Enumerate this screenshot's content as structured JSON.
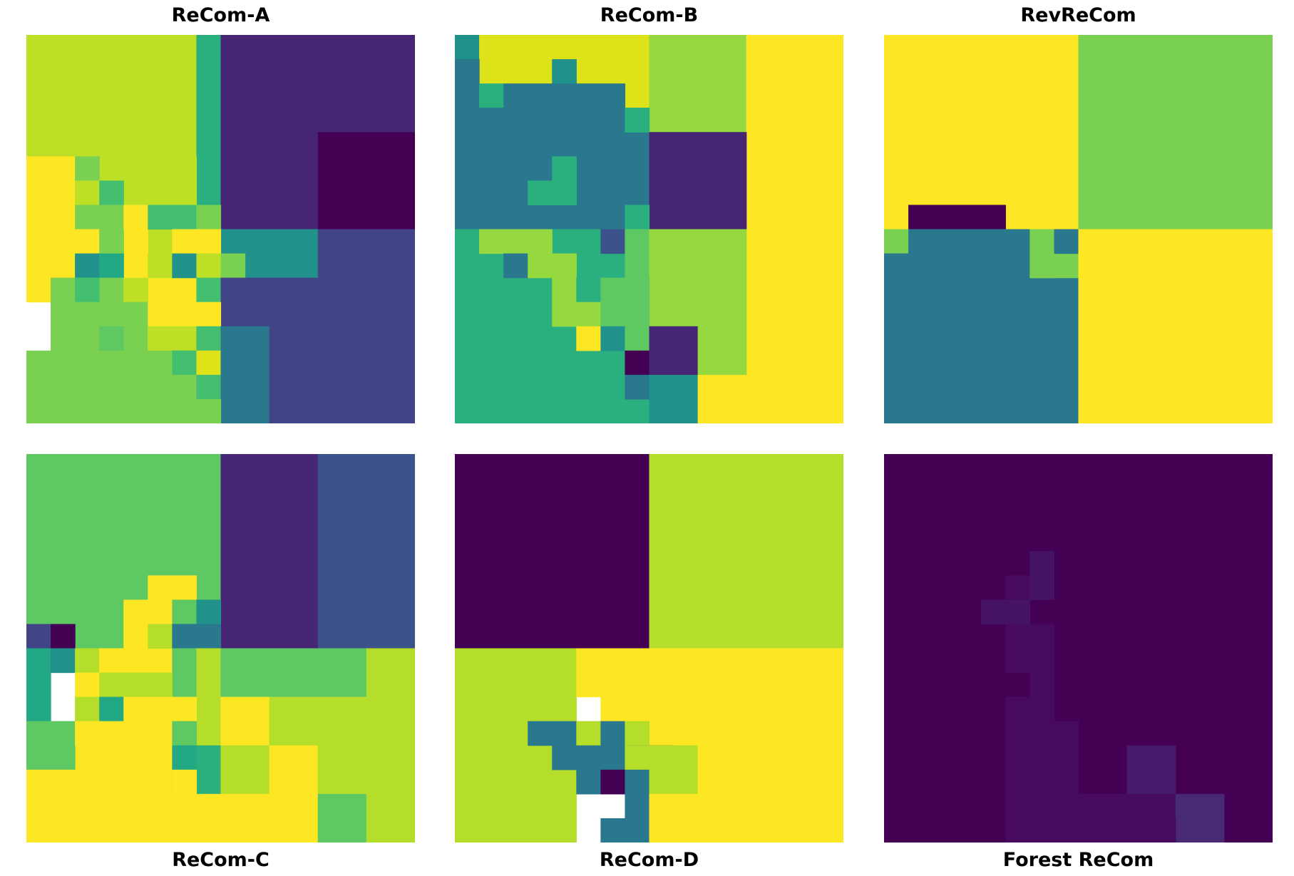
{
  "colors": {
    "c0": "#440154",
    "c1": "#472575",
    "c2": "#414487",
    "c3": "#3b528b",
    "c4": "#2a788e",
    "c5": "#21918c",
    "c6": "#22a884",
    "c7": "#2ab07f",
    "c8": "#44bf70",
    "c9": "#5ec962",
    "c10": "#7ad151",
    "c11": "#95d840",
    "c12": "#b5de2b",
    "c13": "#bddf26",
    "c14": "#dde318",
    "c15": "#fde725",
    "f1": "#45065a",
    "f2": "#460b5e",
    "f3": "#461264",
    "f4": "#471a6c",
    "f5": "#482a74"
  },
  "chart_data": [
    {
      "type": "heatmap",
      "title": "ReCom-A",
      "grid": [
        16,
        16
      ],
      "colormap": "viridis",
      "axes": "off",
      "cells": [
        [
          0,
          0,
          7,
          5,
          "c13"
        ],
        [
          7,
          0,
          1,
          8,
          "c7"
        ],
        [
          8,
          0,
          8,
          4,
          "c1"
        ],
        [
          0,
          5,
          7,
          5,
          "c13"
        ],
        [
          0,
          5,
          2,
          6,
          "c15"
        ],
        [
          2,
          5,
          1,
          1,
          "c10"
        ],
        [
          8,
          4,
          4,
          4,
          "c1"
        ],
        [
          12,
          4,
          4,
          4,
          "c0"
        ],
        [
          2,
          6,
          1,
          1,
          "c13"
        ],
        [
          3,
          6,
          1,
          1,
          "c8"
        ],
        [
          2,
          7,
          2,
          1,
          "c10"
        ],
        [
          4,
          7,
          1,
          2,
          "c15"
        ],
        [
          5,
          7,
          2,
          1,
          "c8"
        ],
        [
          7,
          7,
          1,
          1,
          "c10"
        ],
        [
          8,
          8,
          4,
          2,
          "c5"
        ],
        [
          12,
          8,
          4,
          4,
          "c2"
        ],
        [
          2,
          8,
          1,
          1,
          "c15"
        ],
        [
          3,
          8,
          1,
          1,
          "c10"
        ],
        [
          6,
          8,
          2,
          1,
          "c15"
        ],
        [
          1,
          9,
          6,
          4,
          "c15"
        ],
        [
          2,
          9,
          1,
          1,
          "c5"
        ],
        [
          3,
          9,
          1,
          1,
          "c6"
        ],
        [
          5,
          9,
          1,
          1,
          "c13"
        ],
        [
          6,
          9,
          1,
          1,
          "c5"
        ],
        [
          7,
          9,
          1,
          1,
          "c13"
        ],
        [
          8,
          9,
          1,
          1,
          "c10"
        ],
        [
          1,
          10,
          3,
          2,
          "c10"
        ],
        [
          2,
          10,
          1,
          2,
          "c8"
        ],
        [
          4,
          10,
          1,
          1,
          "c13"
        ],
        [
          7,
          10,
          1,
          2,
          "c8"
        ],
        [
          8,
          10,
          4,
          2,
          "c2"
        ],
        [
          1,
          11,
          4,
          3,
          "c10"
        ],
        [
          5,
          11,
          3,
          2,
          "c15"
        ],
        [
          1,
          12,
          3,
          1,
          "c10"
        ],
        [
          3,
          12,
          1,
          1,
          "c9"
        ],
        [
          5,
          12,
          2,
          1,
          "c13"
        ],
        [
          7,
          12,
          1,
          1,
          "c8"
        ],
        [
          0,
          13,
          8,
          3,
          "c10"
        ],
        [
          6,
          13,
          2,
          1,
          "c8"
        ],
        [
          7,
          13,
          1,
          1,
          "c14"
        ],
        [
          8,
          12,
          8,
          4,
          "c2"
        ],
        [
          0,
          14,
          8,
          2,
          "c10"
        ],
        [
          7,
          14,
          1,
          1,
          "c8"
        ],
        [
          8,
          12,
          2,
          4,
          "c4"
        ],
        [
          10,
          12,
          6,
          4,
          "c2"
        ],
        [
          0,
          15,
          8,
          1,
          "c10"
        ],
        [
          8,
          16,
          0,
          0,
          "c0"
        ]
      ]
    },
    {
      "type": "heatmap",
      "title": "ReCom-B",
      "grid": [
        16,
        16
      ],
      "colormap": "viridis",
      "axes": "off",
      "cells": [
        [
          0,
          0,
          1,
          1,
          "c5"
        ],
        [
          1,
          0,
          7,
          4,
          "c14"
        ],
        [
          8,
          0,
          4,
          4,
          "c11"
        ],
        [
          12,
          0,
          4,
          16,
          "c15"
        ],
        [
          0,
          1,
          1,
          3,
          "c4"
        ],
        [
          4,
          1,
          1,
          1,
          "c5"
        ],
        [
          1,
          2,
          1,
          1,
          "c7"
        ],
        [
          2,
          2,
          5,
          1,
          "c4"
        ],
        [
          0,
          3,
          8,
          5,
          "c4"
        ],
        [
          7,
          3,
          1,
          1,
          "c7"
        ],
        [
          8,
          4,
          4,
          4,
          "c1"
        ],
        [
          4,
          5,
          1,
          1,
          "c7"
        ],
        [
          3,
          6,
          2,
          1,
          "c7"
        ],
        [
          7,
          7,
          1,
          1,
          "c7"
        ],
        [
          0,
          8,
          8,
          8,
          "c7"
        ],
        [
          1,
          8,
          3,
          1,
          "c11"
        ],
        [
          6,
          8,
          1,
          1,
          "c3"
        ],
        [
          7,
          8,
          1,
          2,
          "c9"
        ],
        [
          8,
          8,
          4,
          4,
          "c11"
        ],
        [
          2,
          9,
          1,
          1,
          "c4"
        ],
        [
          3,
          9,
          1,
          1,
          "c11"
        ],
        [
          4,
          9,
          1,
          1,
          "c11"
        ],
        [
          4,
          10,
          1,
          1,
          "c11"
        ],
        [
          5,
          10,
          1,
          1,
          "c7"
        ],
        [
          6,
          10,
          2,
          1,
          "c9"
        ],
        [
          4,
          11,
          3,
          1,
          "c11"
        ],
        [
          6,
          11,
          2,
          1,
          "c9"
        ],
        [
          5,
          12,
          1,
          1,
          "c15"
        ],
        [
          6,
          12,
          1,
          1,
          "c5"
        ],
        [
          7,
          12,
          1,
          1,
          "c9"
        ],
        [
          7,
          13,
          1,
          1,
          "c0"
        ],
        [
          7,
          14,
          1,
          1,
          "c4"
        ],
        [
          8,
          12,
          2,
          2,
          "c1"
        ],
        [
          10,
          12,
          2,
          2,
          "c11"
        ],
        [
          8,
          14,
          2,
          2,
          "c5"
        ],
        [
          10,
          14,
          2,
          2,
          "c15"
        ]
      ]
    },
    {
      "type": "heatmap",
      "title": "RevReCom",
      "grid": [
        16,
        16
      ],
      "colormap": "viridis",
      "axes": "off",
      "cells": [
        [
          0,
          0,
          8,
          8,
          "c15"
        ],
        [
          8,
          0,
          8,
          8,
          "c10"
        ],
        [
          1,
          7,
          4,
          1,
          "c0"
        ],
        [
          0,
          8,
          1,
          1,
          "c10"
        ],
        [
          1,
          8,
          5,
          8,
          "c4"
        ],
        [
          0,
          9,
          8,
          7,
          "c4"
        ],
        [
          6,
          8,
          2,
          2,
          "c10"
        ],
        [
          7,
          8,
          1,
          1,
          "c4"
        ],
        [
          6,
          9,
          1,
          1,
          "c10"
        ],
        [
          8,
          8,
          8,
          8,
          "c15"
        ]
      ]
    },
    {
      "type": "heatmap",
      "title": "ReCom-C",
      "grid": [
        16,
        16
      ],
      "colormap": "viridis",
      "axes": "off",
      "cells": [
        [
          0,
          0,
          8,
          8,
          "c9"
        ],
        [
          8,
          0,
          4,
          8,
          "c1"
        ],
        [
          12,
          0,
          4,
          8,
          "c3"
        ],
        [
          5,
          5,
          2,
          4,
          "c15"
        ],
        [
          4,
          6,
          1,
          3,
          "c15"
        ],
        [
          6,
          6,
          1,
          1,
          "c9"
        ],
        [
          7,
          6,
          1,
          1,
          "c5"
        ],
        [
          0,
          7,
          1,
          1,
          "c2"
        ],
        [
          1,
          7,
          1,
          1,
          "c0"
        ],
        [
          5,
          7,
          1,
          1,
          "c12"
        ],
        [
          6,
          7,
          2,
          1,
          "c4"
        ],
        [
          0,
          8,
          1,
          3,
          "c6"
        ],
        [
          1,
          8,
          1,
          1,
          "c5"
        ],
        [
          2,
          8,
          1,
          1,
          "c12"
        ],
        [
          3,
          8,
          1,
          1,
          "c15"
        ],
        [
          6,
          8,
          1,
          2,
          "c9"
        ],
        [
          7,
          8,
          1,
          4,
          "c12"
        ],
        [
          8,
          8,
          6,
          2,
          "c9"
        ],
        [
          14,
          8,
          2,
          2,
          "c12"
        ],
        [
          2,
          9,
          1,
          1,
          "c15"
        ],
        [
          3,
          9,
          2,
          1,
          "c12"
        ],
        [
          5,
          9,
          1,
          1,
          "c12"
        ],
        [
          2,
          10,
          1,
          1,
          "c12"
        ],
        [
          3,
          10,
          1,
          1,
          "c6"
        ],
        [
          4,
          10,
          3,
          6,
          "c15"
        ],
        [
          0,
          11,
          2,
          2,
          "c9"
        ],
        [
          2,
          11,
          2,
          5,
          "c15"
        ],
        [
          6,
          11,
          1,
          1,
          "c9"
        ],
        [
          8,
          10,
          2,
          2,
          "c15"
        ],
        [
          10,
          10,
          6,
          2,
          "c12"
        ],
        [
          0,
          12,
          2,
          1,
          "c9"
        ],
        [
          6,
          12,
          1,
          1,
          "c6"
        ],
        [
          7,
          12,
          1,
          1,
          "c7"
        ],
        [
          0,
          13,
          2,
          3,
          "c15"
        ],
        [
          6,
          13,
          2,
          1,
          "c7"
        ],
        [
          7,
          13,
          1,
          1,
          "c7"
        ],
        [
          6,
          13,
          1,
          1,
          "c15"
        ],
        [
          8,
          12,
          2,
          2,
          "c12"
        ],
        [
          10,
          12,
          2,
          2,
          "c15"
        ],
        [
          12,
          12,
          4,
          2,
          "c12"
        ],
        [
          7,
          14,
          1,
          2,
          "c15"
        ],
        [
          8,
          14,
          4,
          2,
          "c15"
        ],
        [
          12,
          14,
          2,
          2,
          "c9"
        ],
        [
          14,
          14,
          2,
          2,
          "c12"
        ]
      ]
    },
    {
      "type": "heatmap",
      "title": "ReCom-D",
      "grid": [
        16,
        16
      ],
      "colormap": "viridis",
      "axes": "off",
      "cells": [
        [
          0,
          0,
          8,
          8,
          "c0"
        ],
        [
          8,
          0,
          8,
          8,
          "c12"
        ],
        [
          0,
          8,
          5,
          8,
          "c12"
        ],
        [
          5,
          8,
          3,
          1,
          "c15"
        ],
        [
          8,
          8,
          8,
          8,
          "c15"
        ],
        [
          5,
          9,
          3,
          1,
          "c15"
        ],
        [
          6,
          10,
          2,
          1,
          "c15"
        ],
        [
          3,
          11,
          2,
          1,
          "c4"
        ],
        [
          5,
          11,
          1,
          1,
          "c12"
        ],
        [
          6,
          11,
          1,
          1,
          "c4"
        ],
        [
          7,
          11,
          1,
          1,
          "c12"
        ],
        [
          4,
          12,
          2,
          1,
          "c4"
        ],
        [
          6,
          12,
          2,
          1,
          "c4"
        ],
        [
          7,
          12,
          1,
          1,
          "c12"
        ],
        [
          5,
          13,
          1,
          1,
          "c4"
        ],
        [
          6,
          13,
          1,
          1,
          "c0"
        ],
        [
          7,
          13,
          1,
          1,
          "c4"
        ],
        [
          8,
          12,
          1,
          1,
          "c0"
        ],
        [
          7,
          14,
          1,
          2,
          "c4"
        ],
        [
          6,
          15,
          1,
          1,
          "c4"
        ],
        [
          8,
          12,
          2,
          2,
          "c12"
        ],
        [
          10,
          12,
          6,
          4,
          "c15"
        ],
        [
          8,
          14,
          2,
          2,
          "c15"
        ],
        [
          5,
          16,
          3,
          0,
          "c0"
        ]
      ]
    },
    {
      "type": "heatmap",
      "title": "Forest ReCom",
      "grid": [
        16,
        16
      ],
      "colormap": "viridis",
      "axes": "off",
      "cells": [
        [
          0,
          0,
          16,
          16,
          "c0"
        ],
        [
          6,
          4,
          1,
          1,
          "f3"
        ],
        [
          5,
          5,
          1,
          1,
          "f2"
        ],
        [
          6,
          5,
          1,
          1,
          "f3"
        ],
        [
          4,
          6,
          2,
          1,
          "f3"
        ],
        [
          5,
          7,
          2,
          1,
          "f2"
        ],
        [
          5,
          8,
          2,
          1,
          "f2"
        ],
        [
          6,
          9,
          1,
          1,
          "f2"
        ],
        [
          5,
          10,
          2,
          1,
          "f2"
        ],
        [
          5,
          11,
          3,
          1,
          "f2"
        ],
        [
          5,
          12,
          3,
          2,
          "f2"
        ],
        [
          10,
          12,
          2,
          2,
          "f4"
        ],
        [
          6,
          14,
          3,
          1,
          "f2"
        ],
        [
          5,
          14,
          1,
          1,
          "f2"
        ],
        [
          9,
          14,
          3,
          1,
          "f2"
        ],
        [
          12,
          14,
          2,
          2,
          "f5"
        ],
        [
          5,
          15,
          7,
          1,
          "f2"
        ]
      ]
    }
  ]
}
